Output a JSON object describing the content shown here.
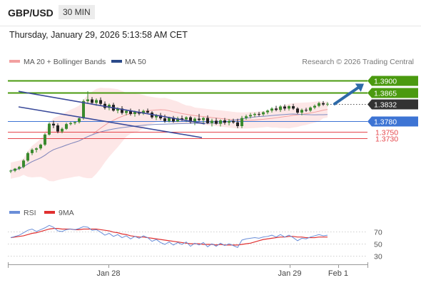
{
  "header": {
    "symbol": "GBP/USD",
    "timeframe": "30 MIN",
    "timestamp": "Thursday, January 29, 2026 5:13:58 AM CET"
  },
  "legend": {
    "ma20_label": "MA 20 + Bollinger Bands",
    "ma50_label": "MA 50",
    "credit": "Research © 2026 Trading Central"
  },
  "rsi_legend": {
    "rsi_label": "RSI",
    "ma9_label": "9MA"
  },
  "colors": {
    "resistance_green": "#4a9a0f",
    "support_blue": "#3d74d4",
    "support_red": "#e5464b",
    "current_price_box": "#333333",
    "channel": "#3a4a9a",
    "arrow": "#2e6aa8",
    "bollinger_fill": "#fde3e3",
    "ma20": "#f2a0a0",
    "ma50": "#7d8cc4",
    "candle_up": "#3a8a2e",
    "candle_down": "#222222",
    "rsi_line": "#6a8ed8",
    "rsi_ma": "#e03030"
  },
  "chart_data": [
    {
      "type": "candlestick",
      "title": "GBP/USD 30 MIN",
      "y_unit": "price",
      "ylim": [
        1.3574,
        1.3939
      ],
      "x_ticks": [
        "Jan 28",
        "Jan 29",
        "Feb 1"
      ],
      "levels": [
        {
          "value": 1.39,
          "label": "1.3900",
          "kind": "resistance"
        },
        {
          "value": 1.3865,
          "label": "1.3865",
          "kind": "resistance"
        },
        {
          "value": 1.3832,
          "label": "1.3832",
          "kind": "current"
        },
        {
          "value": 1.378,
          "label": "1.3780",
          "kind": "pivot"
        },
        {
          "value": 1.375,
          "label": "1.3750",
          "kind": "support"
        },
        {
          "value": 1.373,
          "label": "1.3730",
          "kind": "support"
        }
      ],
      "channel": {
        "upper": [
          {
            "bar": 0,
            "price": 1.3869
          },
          {
            "bar": 44,
            "price": 1.3773
          }
        ],
        "lower": [
          {
            "bar": 0,
            "price": 1.3823
          },
          {
            "bar": 40,
            "price": 1.3732
          }
        ]
      },
      "forecast_arrow": {
        "from": {
          "bar": 75,
          "price": 1.3832
        },
        "to": "1.3900"
      },
      "series": [
        {
          "name": "MA 20 + Bollinger Bands",
          "values": []
        },
        {
          "name": "MA 50",
          "values": []
        }
      ],
      "ohlc": [
        [
          1.3632,
          1.3637,
          1.3627,
          1.3634
        ],
        [
          1.3634,
          1.3642,
          1.363,
          1.364
        ],
        [
          1.364,
          1.3648,
          1.3636,
          1.3645
        ],
        [
          1.3645,
          1.3668,
          1.3641,
          1.3664
        ],
        [
          1.3664,
          1.369,
          1.366,
          1.3686
        ],
        [
          1.3686,
          1.37,
          1.368,
          1.3696
        ],
        [
          1.3696,
          1.3703,
          1.3688,
          1.37
        ],
        [
          1.37,
          1.3714,
          1.3695,
          1.3711
        ],
        [
          1.3711,
          1.3745,
          1.3707,
          1.3741
        ],
        [
          1.3741,
          1.3777,
          1.3738,
          1.3773
        ],
        [
          1.3773,
          1.3782,
          1.376,
          1.3768
        ],
        [
          1.3768,
          1.3774,
          1.3745,
          1.375
        ],
        [
          1.375,
          1.3762,
          1.3745,
          1.3758
        ],
        [
          1.3758,
          1.3776,
          1.3755,
          1.3772
        ],
        [
          1.3772,
          1.3779,
          1.3768,
          1.3775
        ],
        [
          1.3775,
          1.378,
          1.377,
          1.3778
        ],
        [
          1.3778,
          1.3792,
          1.3774,
          1.3789
        ],
        [
          1.3789,
          1.3845,
          1.3785,
          1.384
        ],
        [
          1.384,
          1.3869,
          1.3832,
          1.3845
        ],
        [
          1.3845,
          1.3852,
          1.383,
          1.3835
        ],
        [
          1.3835,
          1.3848,
          1.3826,
          1.3843
        ],
        [
          1.3843,
          1.3851,
          1.3828,
          1.3832
        ],
        [
          1.3832,
          1.3839,
          1.3815,
          1.382
        ],
        [
          1.382,
          1.3833,
          1.3813,
          1.3829
        ],
        [
          1.3829,
          1.3835,
          1.3809,
          1.3812
        ],
        [
          1.3812,
          1.3822,
          1.3804,
          1.3818
        ],
        [
          1.3818,
          1.3825,
          1.38,
          1.3805
        ],
        [
          1.3805,
          1.3815,
          1.3798,
          1.3811
        ],
        [
          1.3811,
          1.3818,
          1.3797,
          1.3802
        ],
        [
          1.3802,
          1.3812,
          1.3794,
          1.3808
        ],
        [
          1.3808,
          1.3816,
          1.3798,
          1.3803
        ],
        [
          1.3803,
          1.3815,
          1.3799,
          1.3811
        ],
        [
          1.3811,
          1.3818,
          1.3802,
          1.3806
        ],
        [
          1.3806,
          1.381,
          1.3788,
          1.3792
        ],
        [
          1.3792,
          1.3802,
          1.3784,
          1.3798
        ],
        [
          1.3798,
          1.3805,
          1.3784,
          1.3789
        ],
        [
          1.3789,
          1.38,
          1.3776,
          1.3781
        ],
        [
          1.3781,
          1.3794,
          1.3777,
          1.3791
        ],
        [
          1.3791,
          1.3796,
          1.3776,
          1.378
        ],
        [
          1.378,
          1.3794,
          1.3778,
          1.3789
        ],
        [
          1.3789,
          1.3797,
          1.3781,
          1.3786
        ],
        [
          1.3786,
          1.3795,
          1.3778,
          1.3792
        ],
        [
          1.3792,
          1.3796,
          1.3774,
          1.3778
        ],
        [
          1.3778,
          1.3792,
          1.3769,
          1.3788
        ],
        [
          1.3788,
          1.3802,
          1.378,
          1.3784
        ],
        [
          1.3784,
          1.3793,
          1.3771,
          1.379
        ],
        [
          1.379,
          1.3798,
          1.3772,
          1.3775
        ],
        [
          1.3775,
          1.3788,
          1.3765,
          1.3782
        ],
        [
          1.3782,
          1.379,
          1.377,
          1.3773
        ],
        [
          1.3773,
          1.3786,
          1.3765,
          1.3783
        ],
        [
          1.3783,
          1.379,
          1.377,
          1.3776
        ],
        [
          1.3776,
          1.3787,
          1.3768,
          1.3781
        ],
        [
          1.3781,
          1.3788,
          1.3773,
          1.3777
        ],
        [
          1.3777,
          1.3788,
          1.376,
          1.3766
        ],
        [
          1.3766,
          1.3796,
          1.376,
          1.379
        ],
        [
          1.379,
          1.38,
          1.3785,
          1.3795
        ],
        [
          1.3795,
          1.3805,
          1.3789,
          1.3799
        ],
        [
          1.3799,
          1.3806,
          1.3792,
          1.3802
        ],
        [
          1.3802,
          1.3808,
          1.3795,
          1.3801
        ],
        [
          1.3801,
          1.381,
          1.3796,
          1.3807
        ],
        [
          1.3807,
          1.3815,
          1.3801,
          1.3812
        ],
        [
          1.3812,
          1.3822,
          1.3806,
          1.3818
        ],
        [
          1.3818,
          1.3826,
          1.381,
          1.3814
        ],
        [
          1.3814,
          1.3828,
          1.3808,
          1.3824
        ],
        [
          1.3824,
          1.383,
          1.3812,
          1.3818
        ],
        [
          1.3818,
          1.3828,
          1.3812,
          1.3825
        ],
        [
          1.3825,
          1.3832,
          1.3814,
          1.3818
        ],
        [
          1.3818,
          1.3822,
          1.3802,
          1.3806
        ],
        [
          1.3806,
          1.3818,
          1.3798,
          1.3814
        ],
        [
          1.3814,
          1.382,
          1.3808,
          1.3812
        ],
        [
          1.3812,
          1.3824,
          1.3808,
          1.3821
        ],
        [
          1.3821,
          1.383,
          1.3816,
          1.3826
        ],
        [
          1.3826,
          1.3838,
          1.3822,
          1.3834
        ],
        [
          1.3834,
          1.384,
          1.3826,
          1.383
        ],
        [
          1.383,
          1.3837,
          1.3825,
          1.3832
        ]
      ]
    },
    {
      "type": "line",
      "title": "RSI",
      "y_ticks": [
        70,
        50,
        30
      ],
      "ylim": [
        20,
        85
      ],
      "x_ticks": [
        "Jan 28",
        "Jan 29",
        "Feb 1"
      ],
      "series": [
        {
          "name": "RSI",
          "values": [
            60,
            62,
            64,
            68,
            72,
            74,
            70,
            73,
            76,
            80,
            77,
            71,
            70,
            73,
            74,
            73,
            75,
            78,
            77,
            72,
            73,
            69,
            64,
            67,
            62,
            65,
            60,
            63,
            58,
            62,
            59,
            63,
            60,
            54,
            57,
            52,
            49,
            53,
            48,
            52,
            49,
            53,
            46,
            51,
            48,
            52,
            45,
            50,
            46,
            51,
            47,
            50,
            47,
            44,
            56,
            58,
            59,
            60,
            59,
            61,
            62,
            64,
            61,
            65,
            61,
            64,
            60,
            55,
            59,
            58,
            61,
            63,
            65,
            63,
            64
          ]
        },
        {
          "name": "9MA",
          "values": [
            60,
            61,
            62,
            63,
            65,
            67,
            68,
            70,
            72,
            74,
            75,
            75,
            74,
            74,
            74,
            73,
            73,
            74,
            74,
            74,
            74,
            73,
            72,
            71,
            69,
            68,
            66,
            65,
            63,
            62,
            61,
            61,
            60,
            59,
            58,
            57,
            56,
            55,
            54,
            53,
            52,
            51,
            50,
            50,
            50,
            49,
            49,
            49,
            48,
            49,
            48,
            48,
            48,
            48,
            49,
            50,
            51,
            53,
            55,
            57,
            58,
            59,
            60,
            61,
            61,
            62,
            62,
            61,
            61,
            60,
            60,
            60,
            61,
            61,
            61
          ]
        }
      ]
    }
  ]
}
